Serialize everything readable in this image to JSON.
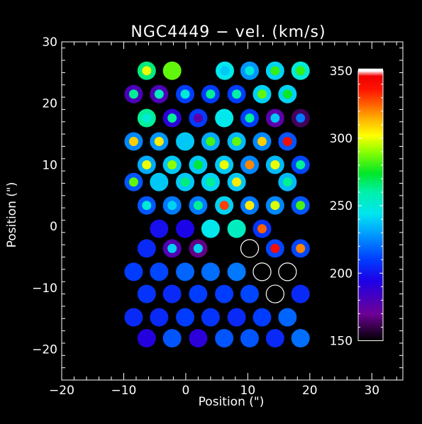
{
  "chart_data": {
    "type": "scatter",
    "title": "NGC4449 − vel. (km/s)",
    "xlabel": "Position (\")",
    "ylabel": "Position (\")",
    "xlim": [
      -20,
      35
    ],
    "ylim": [
      -25,
      30
    ],
    "x_ticks": [
      "−20",
      "−10",
      "0",
      "10",
      "20",
      "30"
    ],
    "x_tick_values": [
      -20,
      -10,
      0,
      10,
      20,
      30
    ],
    "y_ticks": [
      "−20",
      "−10",
      "0",
      "10",
      "20",
      "30"
    ],
    "y_tick_values": [
      -20,
      -10,
      0,
      10,
      20,
      30
    ],
    "grid": false,
    "colorbar": {
      "label_values": [
        150,
        200,
        250,
        300,
        350
      ],
      "labels": [
        "150",
        "200",
        "250",
        "300",
        "350"
      ],
      "range": [
        150,
        350
      ],
      "colormap": "rainbow (black-purple-blue-cyan-green-yellow-red-white)"
    },
    "points": [
      {
        "x": -6.3,
        "y": 25.3,
        "outer": 265,
        "inner": 300
      },
      {
        "x": -2.2,
        "y": 25.3,
        "outer": 285,
        "inner": 285
      },
      {
        "x": 6.3,
        "y": 25.3,
        "outer": 245,
        "inner": 238
      },
      {
        "x": 10.3,
        "y": 25.3,
        "outer": 228,
        "inner": 250
      },
      {
        "x": 14.4,
        "y": 25.3,
        "outer": 240,
        "inner": 280
      },
      {
        "x": 18.5,
        "y": 25.3,
        "outer": 250,
        "inner": 280
      },
      {
        "x": -8.4,
        "y": 21.5,
        "outer": 180,
        "inner": 262
      },
      {
        "x": -4.3,
        "y": 21.5,
        "outer": 180,
        "inner": 255
      },
      {
        "x": -0.1,
        "y": 21.5,
        "outer": 210,
        "inner": 250
      },
      {
        "x": 4.0,
        "y": 21.5,
        "outer": 210,
        "inner": 262
      },
      {
        "x": 8.2,
        "y": 21.5,
        "outer": 210,
        "inner": 260
      },
      {
        "x": 12.3,
        "y": 21.5,
        "outer": 240,
        "inner": 285
      },
      {
        "x": 16.4,
        "y": 21.5,
        "outer": 240,
        "inner": 275
      },
      {
        "x": -6.3,
        "y": 17.6,
        "outer": 262,
        "inner": 250
      },
      {
        "x": -2.2,
        "y": 17.6,
        "outer": 190,
        "inner": 262
      },
      {
        "x": 2.0,
        "y": 17.6,
        "outer": 210,
        "inner": 175
      },
      {
        "x": 6.2,
        "y": 17.6,
        "outer": 245,
        "inner": 245
      },
      {
        "x": 10.3,
        "y": 17.6,
        "outer": 210,
        "inner": 262
      },
      {
        "x": 14.4,
        "y": 17.6,
        "outer": 175,
        "inner": 238
      },
      {
        "x": 18.5,
        "y": 17.6,
        "outer": 162,
        "inner": 222
      },
      {
        "x": -8.4,
        "y": 13.8,
        "outer": 225,
        "inner": 310
      },
      {
        "x": -4.3,
        "y": 13.8,
        "outer": 228,
        "inner": 305
      },
      {
        "x": -0.1,
        "y": 13.8,
        "outer": 238,
        "inner": 238
      },
      {
        "x": 4.0,
        "y": 13.8,
        "outer": 232,
        "inner": 282
      },
      {
        "x": 8.2,
        "y": 13.8,
        "outer": 235,
        "inner": 285
      },
      {
        "x": 12.3,
        "y": 13.8,
        "outer": 225,
        "inner": 310
      },
      {
        "x": 16.4,
        "y": 13.8,
        "outer": 215,
        "inner": 340
      },
      {
        "x": -6.3,
        "y": 10.0,
        "outer": 232,
        "inner": 300
      },
      {
        "x": -2.2,
        "y": 10.0,
        "outer": 238,
        "inner": 290
      },
      {
        "x": 2.0,
        "y": 10.0,
        "outer": 238,
        "inner": 272
      },
      {
        "x": 6.2,
        "y": 10.0,
        "outer": 238,
        "inner": 300
      },
      {
        "x": 10.3,
        "y": 10.0,
        "outer": 225,
        "inner": 320
      },
      {
        "x": 14.4,
        "y": 10.0,
        "outer": 235,
        "inner": 300
      },
      {
        "x": 18.5,
        "y": 10.0,
        "outer": 212,
        "inner": 262
      },
      {
        "x": -8.4,
        "y": 7.2,
        "outer": 215,
        "inner": 285
      },
      {
        "x": -4.3,
        "y": 7.2,
        "outer": 238,
        "inner": 238
      },
      {
        "x": -0.1,
        "y": 7.2,
        "outer": 238,
        "inner": 265
      },
      {
        "x": 4.0,
        "y": 7.2,
        "outer": 240,
        "inner": 262
      },
      {
        "x": 8.2,
        "y": 7.2,
        "outer": 238,
        "inner": 305
      },
      {
        "x": 16.4,
        "y": 7.2,
        "outer": 235,
        "inner": 262
      },
      {
        "x": -6.3,
        "y": 3.4,
        "outer": 215,
        "inner": 250
      },
      {
        "x": -2.2,
        "y": 3.4,
        "outer": 222,
        "inner": 240
      },
      {
        "x": 2.0,
        "y": 3.4,
        "outer": 222,
        "inner": 262
      },
      {
        "x": 6.2,
        "y": 3.4,
        "outer": 240,
        "inner": 330
      },
      {
        "x": 10.3,
        "y": 3.4,
        "outer": 222,
        "inner": 305
      },
      {
        "x": 14.4,
        "y": 3.4,
        "outer": 225,
        "inner": 298
      },
      {
        "x": 18.5,
        "y": 3.4,
        "outer": 215,
        "inner": 282
      },
      {
        "x": -4.3,
        "y": -0.4,
        "outer": 198,
        "inner": 198
      },
      {
        "x": -0.1,
        "y": -0.4,
        "outer": 195,
        "inner": 195
      },
      {
        "x": 4.0,
        "y": -0.4,
        "outer": 245,
        "inner": 245
      },
      {
        "x": 8.2,
        "y": -0.4,
        "outer": 255,
        "inner": 255
      },
      {
        "x": 12.3,
        "y": -0.4,
        "outer": 208,
        "inner": 325
      },
      {
        "x": -6.3,
        "y": -3.6,
        "outer": 205,
        "inner": 205
      },
      {
        "x": -2.2,
        "y": -3.6,
        "outer": 178,
        "inner": 240
      },
      {
        "x": 2.0,
        "y": -3.6,
        "outer": 168,
        "inner": 240
      },
      {
        "x": 10.3,
        "y": -3.6,
        "outer": null,
        "inner": null
      },
      {
        "x": 14.4,
        "y": -3.6,
        "outer": 212,
        "inner": 340
      },
      {
        "x": 18.5,
        "y": -3.6,
        "outer": 212,
        "inner": 320
      },
      {
        "x": -8.4,
        "y": -7.4,
        "outer": 210,
        "inner": 210
      },
      {
        "x": -4.3,
        "y": -7.4,
        "outer": 212,
        "inner": 212
      },
      {
        "x": -0.1,
        "y": -7.4,
        "outer": 218,
        "inner": 218
      },
      {
        "x": 4.0,
        "y": -7.4,
        "outer": 220,
        "inner": 220
      },
      {
        "x": 8.2,
        "y": -7.4,
        "outer": 222,
        "inner": 222
      },
      {
        "x": 12.3,
        "y": -7.4,
        "outer": null,
        "inner": null
      },
      {
        "x": 16.4,
        "y": -7.4,
        "outer": null,
        "inner": null
      },
      {
        "x": -6.3,
        "y": -11.0,
        "outer": 208,
        "inner": 208
      },
      {
        "x": -2.2,
        "y": -11.0,
        "outer": 205,
        "inner": 205
      },
      {
        "x": 2.0,
        "y": -11.0,
        "outer": 210,
        "inner": 210
      },
      {
        "x": 6.2,
        "y": -11.0,
        "outer": 210,
        "inner": 210
      },
      {
        "x": 10.3,
        "y": -11.0,
        "outer": 212,
        "inner": 212
      },
      {
        "x": 14.4,
        "y": -11.0,
        "outer": null,
        "inner": null
      },
      {
        "x": 18.5,
        "y": -11.0,
        "outer": 205,
        "inner": 205
      },
      {
        "x": -8.4,
        "y": -14.8,
        "outer": 205,
        "inner": 205
      },
      {
        "x": -4.3,
        "y": -14.8,
        "outer": 205,
        "inner": 205
      },
      {
        "x": -0.1,
        "y": -14.8,
        "outer": 210,
        "inner": 210
      },
      {
        "x": 4.0,
        "y": -14.8,
        "outer": 208,
        "inner": 208
      },
      {
        "x": 8.2,
        "y": -14.8,
        "outer": 205,
        "inner": 205
      },
      {
        "x": 12.3,
        "y": -14.8,
        "outer": 210,
        "inner": 210
      },
      {
        "x": 16.4,
        "y": -14.8,
        "outer": 218,
        "inner": 218
      },
      {
        "x": -6.3,
        "y": -18.2,
        "outer": 192,
        "inner": 192
      },
      {
        "x": -2.2,
        "y": -18.2,
        "outer": 215,
        "inner": 215
      },
      {
        "x": 2.0,
        "y": -18.2,
        "outer": 190,
        "inner": 190
      },
      {
        "x": 6.2,
        "y": -18.2,
        "outer": 215,
        "inner": 215
      },
      {
        "x": 10.3,
        "y": -18.2,
        "outer": 215,
        "inner": 215
      },
      {
        "x": 14.4,
        "y": -18.2,
        "outer": 205,
        "inner": 205
      },
      {
        "x": 18.5,
        "y": -18.2,
        "outer": 220,
        "inner": 220
      }
    ]
  }
}
